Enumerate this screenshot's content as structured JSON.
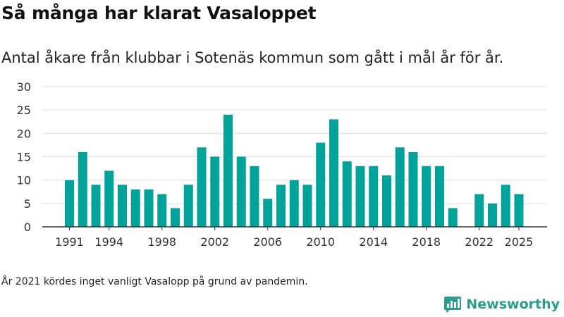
{
  "header": {
    "title": "Så många har klarat Vasaloppet",
    "subtitle": "Antal åkare från klubbar i Sotenäs kommun som gått i mål år för år."
  },
  "footer": {
    "note": "År 2021 kördes inget vanligt Vasalopp på grund av pandemin.",
    "brand": "Newsworthy"
  },
  "colors": {
    "bar": "#00a39a",
    "grid": "#dddddd",
    "axis": "#333333",
    "text": "#333333",
    "brand": "#2a9d8f"
  },
  "icons": {
    "brand_logo": "bar-chart-logo-icon"
  },
  "chart_data": {
    "type": "bar",
    "x": [
      1991,
      1992,
      1993,
      1994,
      1995,
      1996,
      1997,
      1998,
      1999,
      2000,
      2001,
      2002,
      2003,
      2004,
      2005,
      2006,
      2007,
      2008,
      2009,
      2010,
      2011,
      2012,
      2013,
      2014,
      2015,
      2016,
      2017,
      2018,
      2019,
      2020,
      2021,
      2022,
      2023,
      2024,
      2025
    ],
    "values": [
      10,
      16,
      9,
      12,
      9,
      8,
      8,
      7,
      4,
      9,
      17,
      15,
      24,
      15,
      13,
      6,
      9,
      10,
      9,
      18,
      23,
      14,
      13,
      13,
      11,
      17,
      16,
      13,
      13,
      4,
      null,
      7,
      5,
      9,
      7
    ],
    "x_tick_labels": [
      "1991",
      "1994",
      "1998",
      "2002",
      "2006",
      "2010",
      "2014",
      "2018",
      "2022",
      "2025"
    ],
    "y_ticks": [
      0,
      5,
      10,
      15,
      20,
      25,
      30
    ],
    "ylim": [
      0,
      30
    ],
    "grid": true,
    "legend": "none"
  }
}
